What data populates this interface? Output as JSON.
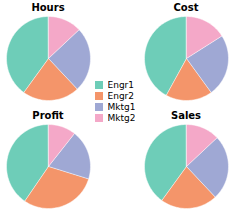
{
  "chart_data": [
    {
      "type": "pie",
      "title": "Hours",
      "categories": [
        "Engr1",
        "Engr2",
        "Mktg1",
        "Mktg2"
      ],
      "values": [
        40,
        22,
        25,
        13
      ],
      "colors": [
        "#6ecdb8",
        "#f4956a",
        "#9fa8d4",
        "#f4a8c8"
      ],
      "legend": "center"
    },
    {
      "type": "pie",
      "title": "Cost",
      "categories": [
        "Engr1",
        "Engr2",
        "Mktg1",
        "Mktg2"
      ],
      "values": [
        42,
        18,
        24,
        16
      ],
      "colors": [
        "#6ecdb8",
        "#f4956a",
        "#9fa8d4",
        "#f4a8c8"
      ],
      "legend": "center"
    },
    {
      "type": "pie",
      "title": "Profit",
      "categories": [
        "Engr1",
        "Engr2",
        "Mktg1",
        "Mktg2"
      ],
      "values": [
        38,
        28,
        18,
        10
      ],
      "colors": [
        "#6ecdb8",
        "#f4956a",
        "#9fa8d4",
        "#f4a8c8"
      ],
      "legend": "center"
    },
    {
      "type": "pie",
      "title": "Sales",
      "categories": [
        "Engr1",
        "Engr2",
        "Mktg1",
        "Mktg2"
      ],
      "values": [
        40,
        22,
        25,
        13
      ],
      "colors": [
        "#6ecdb8",
        "#f4956a",
        "#9fa8d4",
        "#f4a8c8"
      ],
      "legend": "center"
    }
  ]
}
